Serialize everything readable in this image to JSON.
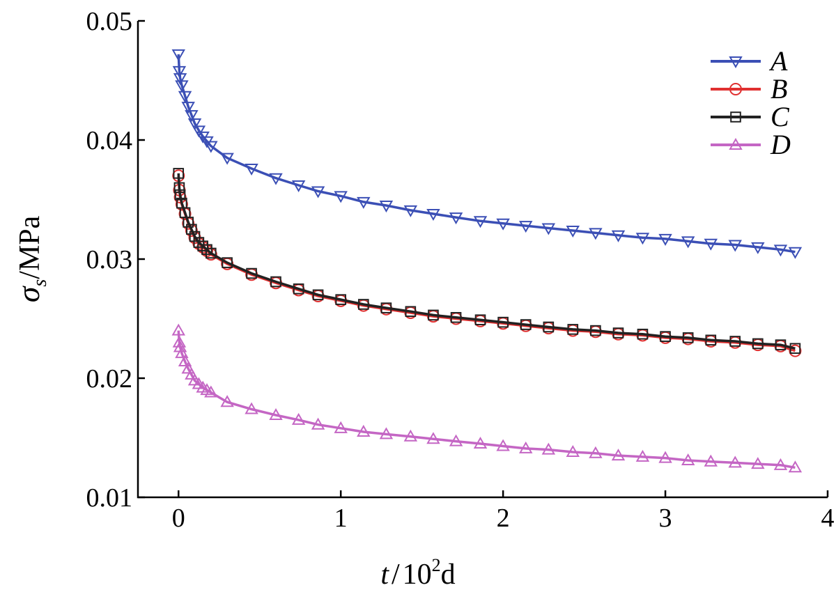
{
  "chart_data": {
    "type": "line",
    "title": "",
    "xlabel_parts": {
      "var": "t",
      "sep": "/",
      "base": "10",
      "exp": "2",
      "unit": "d"
    },
    "ylabel_parts": {
      "var": "σ",
      "sub": "s",
      "unit": "/MPa"
    },
    "xlim": [
      -0.25,
      4
    ],
    "ylim": [
      0.01,
      0.05
    ],
    "xticks": [
      0,
      1,
      2,
      3,
      4
    ],
    "yticks": [
      0.01,
      0.02,
      0.03,
      0.04,
      0.05
    ],
    "xtick_labels": [
      "0",
      "1",
      "2",
      "3",
      "4"
    ],
    "ytick_labels": [
      "0.01",
      "0.02",
      "0.03",
      "0.04",
      "0.05"
    ],
    "grid": false,
    "legend": "top-right",
    "x": [
      0,
      0.005,
      0.01,
      0.02,
      0.04,
      0.06,
      0.08,
      0.1,
      0.125,
      0.15,
      0.175,
      0.2,
      0.3,
      0.45,
      0.6,
      0.74,
      0.86,
      1.0,
      1.14,
      1.28,
      1.43,
      1.57,
      1.71,
      1.86,
      2.0,
      2.14,
      2.28,
      2.43,
      2.57,
      2.71,
      2.86,
      3.0,
      3.14,
      3.28,
      3.43,
      3.57,
      3.71,
      3.8
    ],
    "series": [
      {
        "name": "A",
        "color": "#3b4fb5",
        "marker": "triangle-down",
        "values": [
          0.0472,
          0.0458,
          0.0452,
          0.0446,
          0.0437,
          0.0428,
          0.0421,
          0.0414,
          0.0408,
          0.0403,
          0.0399,
          0.0395,
          0.0385,
          0.0376,
          0.0368,
          0.0362,
          0.0357,
          0.0353,
          0.0348,
          0.0345,
          0.0341,
          0.0338,
          0.0335,
          0.0332,
          0.033,
          0.0328,
          0.0326,
          0.0324,
          0.0322,
          0.032,
          0.0318,
          0.0317,
          0.0315,
          0.0313,
          0.0312,
          0.031,
          0.0308,
          0.0306
        ]
      },
      {
        "name": "B",
        "color": "#e03030",
        "marker": "circle",
        "values": [
          0.037,
          0.0358,
          0.0352,
          0.0346,
          0.0338,
          0.033,
          0.0324,
          0.0318,
          0.0313,
          0.031,
          0.0307,
          0.0304,
          0.0296,
          0.0287,
          0.028,
          0.0274,
          0.0269,
          0.0265,
          0.0261,
          0.0258,
          0.0255,
          0.0252,
          0.025,
          0.0248,
          0.0246,
          0.0244,
          0.0242,
          0.024,
          0.0239,
          0.0237,
          0.0236,
          0.0234,
          0.0233,
          0.0231,
          0.023,
          0.0228,
          0.0227,
          0.0223
        ]
      },
      {
        "name": "C",
        "color": "#222222",
        "marker": "square",
        "values": [
          0.0372,
          0.036,
          0.0354,
          0.0347,
          0.0339,
          0.0331,
          0.0325,
          0.0319,
          0.0314,
          0.0311,
          0.0308,
          0.0305,
          0.0297,
          0.0288,
          0.0281,
          0.0275,
          0.027,
          0.0266,
          0.0262,
          0.0259,
          0.0256,
          0.0253,
          0.0251,
          0.0249,
          0.0247,
          0.0245,
          0.0243,
          0.0241,
          0.024,
          0.0238,
          0.0237,
          0.0235,
          0.0234,
          0.0232,
          0.0231,
          0.0229,
          0.0228,
          0.0225
        ]
      },
      {
        "name": "D",
        "color": "#c466c4",
        "marker": "triangle-up",
        "values": [
          0.024,
          0.023,
          0.0226,
          0.0221,
          0.0214,
          0.0208,
          0.0203,
          0.0198,
          0.0195,
          0.0192,
          0.019,
          0.0188,
          0.018,
          0.0174,
          0.0169,
          0.0165,
          0.0161,
          0.0158,
          0.0155,
          0.0153,
          0.0151,
          0.0149,
          0.0147,
          0.0145,
          0.0143,
          0.0141,
          0.014,
          0.0138,
          0.0137,
          0.0135,
          0.0134,
          0.0133,
          0.0131,
          0.013,
          0.0129,
          0.0128,
          0.0127,
          0.0125
        ]
      }
    ]
  }
}
